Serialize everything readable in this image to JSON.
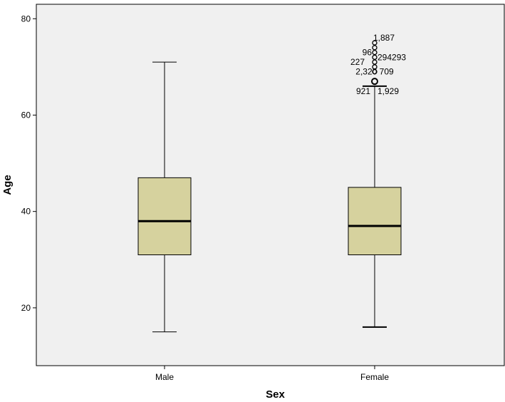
{
  "chart_data": {
    "type": "boxplot",
    "xlabel": "Sex",
    "ylabel": "Age",
    "ylim": [
      8,
      83
    ],
    "yticks": [
      20,
      40,
      60,
      80
    ],
    "grid": false,
    "colors": {
      "plot_bg": "#F0F0F0",
      "box_fill": "#D6D29E",
      "line": "#000000"
    },
    "categories": [
      "Male",
      "Female"
    ],
    "boxes": [
      {
        "category": "Male",
        "whisker_low": 15,
        "q1": 31,
        "median": 38,
        "q3": 47,
        "whisker_high": 71,
        "outliers": []
      },
      {
        "category": "Female",
        "whisker_low": 16,
        "q1": 31,
        "median": 37,
        "q3": 45,
        "whisker_high": 66,
        "outliers": [
          {
            "value": 75,
            "label": "1,887"
          },
          {
            "value": 74,
            "label": ""
          },
          {
            "value": 73,
            "label": "96"
          },
          {
            "value": 72,
            "label": "294293"
          },
          {
            "value": 71,
            "label": "227"
          },
          {
            "value": 70,
            "label": ""
          },
          {
            "value": 69,
            "label": "2,320 709"
          },
          {
            "value": 67,
            "label": ""
          }
        ]
      }
    ],
    "annotations": [
      "921",
      "1,929"
    ]
  }
}
